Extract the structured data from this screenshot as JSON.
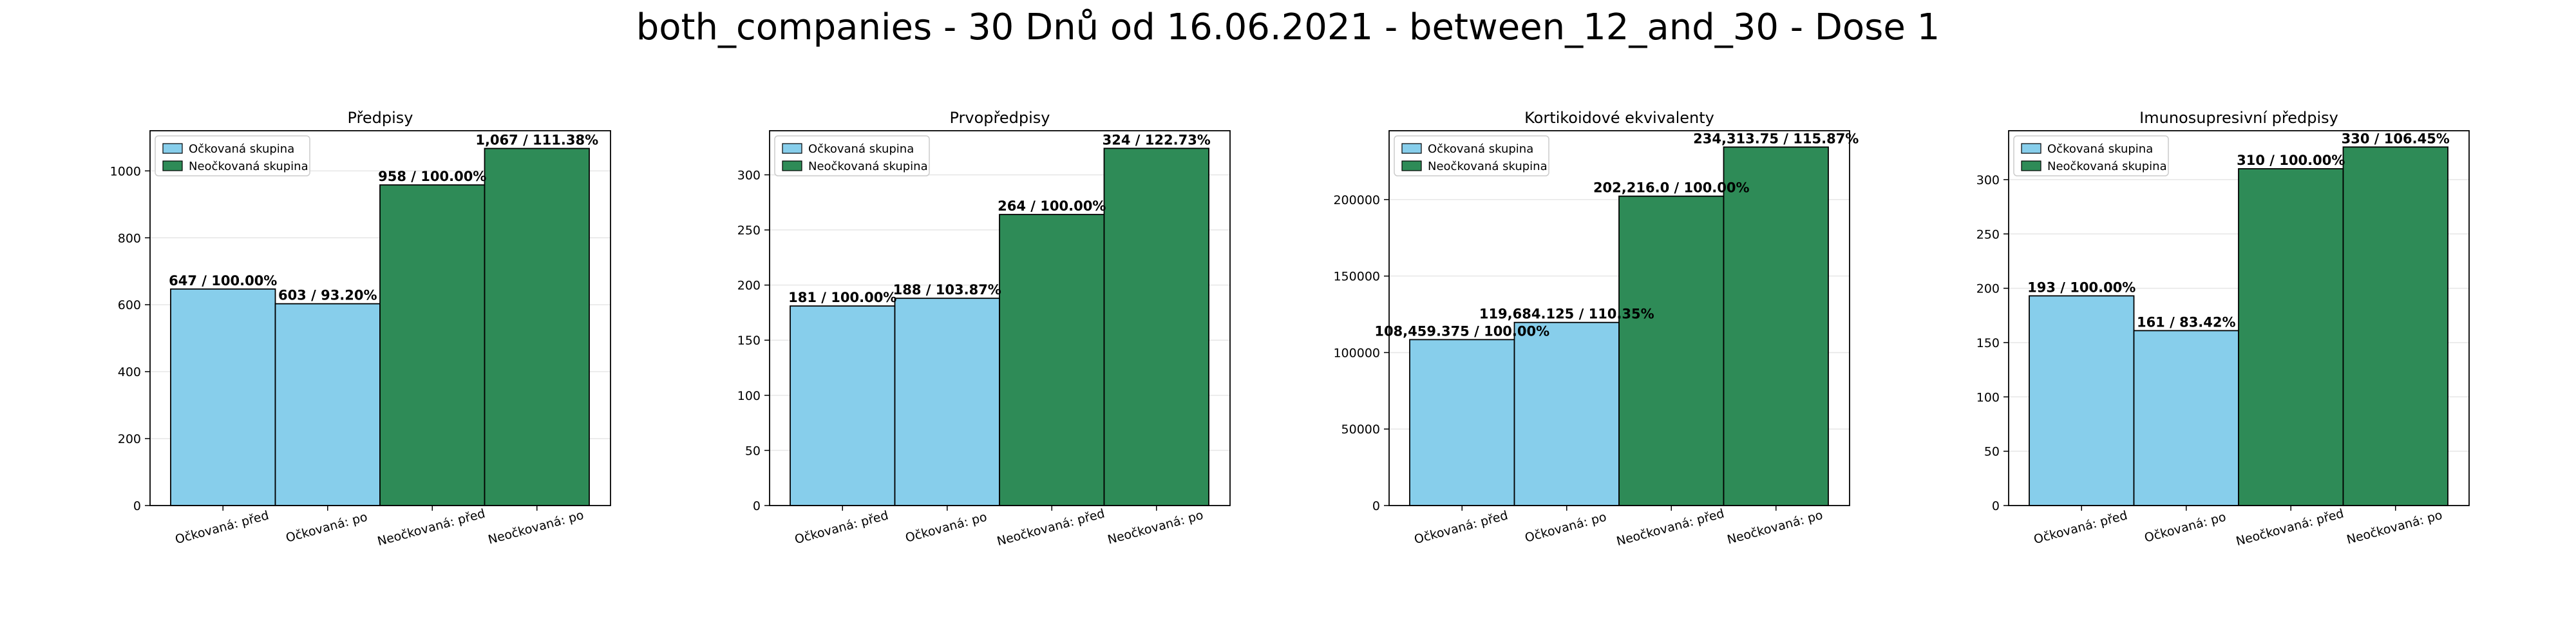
{
  "figure": {
    "suptitle": "both_companies - 30 Dnů od 16.06.2021 - between_12_and_30 - Dose 1"
  },
  "colors": {
    "vaccinated": "#87CEEB",
    "unvaccinated": "#2E8B57",
    "edge": "#000000",
    "grid": "#e6e6e6"
  },
  "chart_data": [
    {
      "type": "bar",
      "title": "Předpisy",
      "categories": [
        "Očkovaná: před",
        "Očkovaná: po",
        "Neočkovaná: před",
        "Neočkovaná: po"
      ],
      "values": [
        647,
        603,
        958,
        1067
      ],
      "data_labels": [
        "647 / 100.00%",
        "603 / 93.20%",
        "958 / 100.00%",
        "1,067 / 111.38%"
      ],
      "groups": [
        "vaccinated",
        "vaccinated",
        "unvaccinated",
        "unvaccinated"
      ],
      "legend": [
        "Očkovaná skupina",
        "Neočkovaná skupina"
      ],
      "legend_position": "upper-left",
      "yticks": [
        0,
        200,
        400,
        600,
        800,
        1000
      ],
      "ylim": [
        0,
        1120
      ],
      "grid": true
    },
    {
      "type": "bar",
      "title": "Prvopředpisy",
      "categories": [
        "Očkovaná: před",
        "Očkovaná: po",
        "Neočkovaná: před",
        "Neočkovaná: po"
      ],
      "values": [
        181,
        188,
        264,
        324
      ],
      "data_labels": [
        "181 / 100.00%",
        "188 / 103.87%",
        "264 / 100.00%",
        "324 / 122.73%"
      ],
      "groups": [
        "vaccinated",
        "vaccinated",
        "unvaccinated",
        "unvaccinated"
      ],
      "legend": [
        "Očkovaná skupina",
        "Neočkovaná skupina"
      ],
      "legend_position": "upper-left",
      "yticks": [
        0,
        50,
        100,
        150,
        200,
        250,
        300
      ],
      "ylim": [
        0,
        340
      ],
      "grid": true
    },
    {
      "type": "bar",
      "title": "Kortikoidové ekvivalenty",
      "categories": [
        "Očkovaná: před",
        "Očkovaná: po",
        "Neočkovaná: před",
        "Neočkovaná: po"
      ],
      "values": [
        108459.375,
        119684.125,
        202216.0,
        234313.75
      ],
      "data_labels": [
        "108,459.375 / 100.00%",
        "119,684.125 / 110.35%",
        "202,216.0 / 100.00%",
        "234,313.75 / 115.87%"
      ],
      "groups": [
        "vaccinated",
        "vaccinated",
        "unvaccinated",
        "unvaccinated"
      ],
      "legend": [
        "Očkovaná skupina",
        "Neočkovaná skupina"
      ],
      "legend_position": "upper-left",
      "yticks": [
        0,
        50000,
        100000,
        150000,
        200000
      ],
      "ylim": [
        0,
        245000
      ],
      "grid": true
    },
    {
      "type": "bar",
      "title": "Imunosupresivní předpisy",
      "categories": [
        "Očkovaná: před",
        "Očkovaná: po",
        "Neočkovaná: před",
        "Neočkovaná: po"
      ],
      "values": [
        193,
        161,
        310,
        330
      ],
      "data_labels": [
        "193 / 100.00%",
        "161 / 83.42%",
        "310 / 100.00%",
        "330 / 106.45%"
      ],
      "groups": [
        "vaccinated",
        "vaccinated",
        "unvaccinated",
        "unvaccinated"
      ],
      "legend": [
        "Očkovaná skupina",
        "Neočkovaná skupina"
      ],
      "legend_position": "upper-left",
      "yticks": [
        0,
        50,
        100,
        150,
        200,
        250,
        300
      ],
      "ylim": [
        0,
        345
      ],
      "grid": true
    }
  ]
}
